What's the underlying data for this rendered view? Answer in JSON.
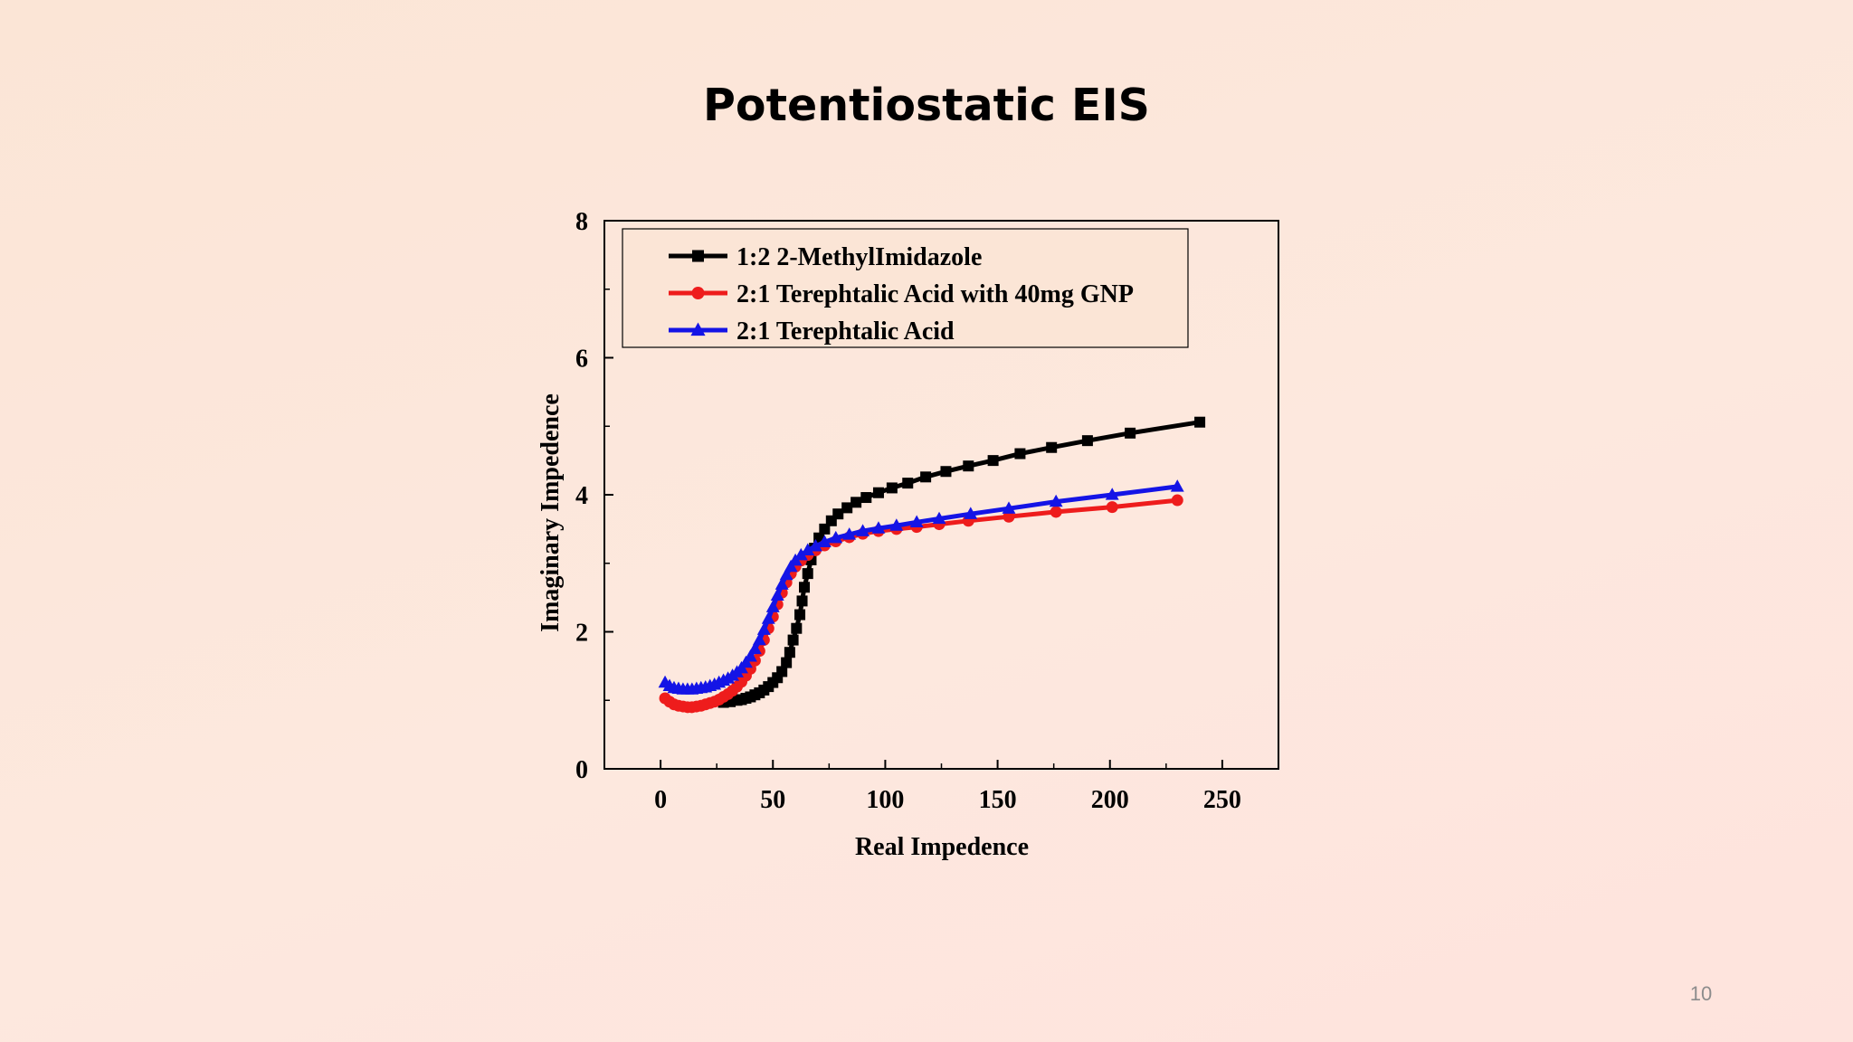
{
  "slide": {
    "title": "Potentiostatic EIS",
    "page_number": "10"
  },
  "colors": {
    "background": "#fbe5d6",
    "series_black": "#000000",
    "series_red": "#ee1c1c",
    "series_blue": "#1414e6"
  },
  "chart_data": {
    "type": "scatter",
    "xlabel": "Real Impedence",
    "ylabel": "Imaginary Impedence",
    "xlim": [
      -25,
      275
    ],
    "ylim": [
      0,
      8
    ],
    "xticks": [
      0,
      50,
      100,
      150,
      200,
      250
    ],
    "yticks": [
      0,
      2,
      4,
      6,
      8
    ],
    "legend_position": "top-left",
    "grid": false,
    "series": [
      {
        "name": "1:2 2-MethylImidazole",
        "color": "#000000",
        "marker": "square",
        "points": [
          [
            28,
            0.97
          ],
          [
            31,
            0.98
          ],
          [
            34,
            1.0
          ],
          [
            36,
            1.01
          ],
          [
            38,
            1.03
          ],
          [
            40,
            1.05
          ],
          [
            42,
            1.08
          ],
          [
            44,
            1.11
          ],
          [
            46,
            1.15
          ],
          [
            48,
            1.2
          ],
          [
            50,
            1.26
          ],
          [
            52,
            1.33
          ],
          [
            54,
            1.42
          ],
          [
            56,
            1.55
          ],
          [
            57.5,
            1.7
          ],
          [
            59,
            1.88
          ],
          [
            60.5,
            2.05
          ],
          [
            62,
            2.25
          ],
          [
            63,
            2.45
          ],
          [
            64,
            2.65
          ],
          [
            65.5,
            2.85
          ],
          [
            67,
            3.05
          ],
          [
            68.5,
            3.22
          ],
          [
            70.5,
            3.37
          ],
          [
            73,
            3.5
          ],
          [
            76,
            3.62
          ],
          [
            79,
            3.72
          ],
          [
            83,
            3.81
          ],
          [
            87,
            3.89
          ],
          [
            91.5,
            3.96
          ],
          [
            97,
            4.03
          ],
          [
            103,
            4.1
          ],
          [
            110,
            4.17
          ],
          [
            118,
            4.26
          ],
          [
            127,
            4.34
          ],
          [
            137,
            4.42
          ],
          [
            148,
            4.5
          ],
          [
            160,
            4.6
          ],
          [
            174,
            4.69
          ],
          [
            190,
            4.79
          ],
          [
            209,
            4.9
          ],
          [
            240,
            5.06
          ]
        ]
      },
      {
        "name": "2:1 Terephtalic Acid with 40mg GNP",
        "color": "#ee1c1c",
        "marker": "circle",
        "points": [
          [
            2,
            1.03
          ],
          [
            4,
            0.98
          ],
          [
            6,
            0.94
          ],
          [
            8,
            0.92
          ],
          [
            10,
            0.91
          ],
          [
            12,
            0.9
          ],
          [
            14,
            0.9
          ],
          [
            16,
            0.91
          ],
          [
            18,
            0.92
          ],
          [
            20,
            0.94
          ],
          [
            22,
            0.96
          ],
          [
            24,
            0.98
          ],
          [
            26,
            1.01
          ],
          [
            28,
            1.05
          ],
          [
            30,
            1.09
          ],
          [
            32,
            1.14
          ],
          [
            34,
            1.2
          ],
          [
            36,
            1.27
          ],
          [
            38,
            1.36
          ],
          [
            40,
            1.46
          ],
          [
            42,
            1.58
          ],
          [
            44,
            1.72
          ],
          [
            46,
            1.88
          ],
          [
            48,
            2.05
          ],
          [
            50,
            2.22
          ],
          [
            52,
            2.4
          ],
          [
            54,
            2.57
          ],
          [
            56,
            2.72
          ],
          [
            58,
            2.85
          ],
          [
            60,
            2.95
          ],
          [
            62.5,
            3.04
          ],
          [
            65.5,
            3.12
          ],
          [
            69,
            3.19
          ],
          [
            73,
            3.26
          ],
          [
            78,
            3.32
          ],
          [
            84,
            3.38
          ],
          [
            90,
            3.43
          ],
          [
            97,
            3.47
          ],
          [
            105,
            3.5
          ],
          [
            114,
            3.53
          ],
          [
            124,
            3.57
          ],
          [
            137,
            3.62
          ],
          [
            155,
            3.68
          ],
          [
            176,
            3.75
          ],
          [
            201,
            3.82
          ],
          [
            230,
            3.92
          ]
        ]
      },
      {
        "name": "2:1 Terephtalic Acid",
        "color": "#1414e6",
        "marker": "triangle",
        "points": [
          [
            2,
            1.26
          ],
          [
            4,
            1.21
          ],
          [
            6,
            1.18
          ],
          [
            8,
            1.17
          ],
          [
            10,
            1.16
          ],
          [
            12,
            1.16
          ],
          [
            14,
            1.16
          ],
          [
            16,
            1.17
          ],
          [
            18,
            1.18
          ],
          [
            20,
            1.19
          ],
          [
            22,
            1.21
          ],
          [
            24,
            1.23
          ],
          [
            26,
            1.26
          ],
          [
            28,
            1.29
          ],
          [
            30,
            1.32
          ],
          [
            32,
            1.36
          ],
          [
            34,
            1.41
          ],
          [
            36,
            1.47
          ],
          [
            38,
            1.55
          ],
          [
            40,
            1.64
          ],
          [
            42,
            1.75
          ],
          [
            44,
            1.88
          ],
          [
            46,
            2.03
          ],
          [
            48,
            2.19
          ],
          [
            50,
            2.36
          ],
          [
            52,
            2.53
          ],
          [
            54,
            2.69
          ],
          [
            56,
            2.83
          ],
          [
            58,
            2.95
          ],
          [
            60,
            3.04
          ],
          [
            62.5,
            3.12
          ],
          [
            65.5,
            3.19
          ],
          [
            69,
            3.25
          ],
          [
            73,
            3.31
          ],
          [
            78,
            3.37
          ],
          [
            84,
            3.42
          ],
          [
            90,
            3.47
          ],
          [
            97,
            3.51
          ],
          [
            105,
            3.55
          ],
          [
            114,
            3.6
          ],
          [
            124,
            3.65
          ],
          [
            138,
            3.72
          ],
          [
            155,
            3.8
          ],
          [
            176,
            3.9
          ],
          [
            201,
            4.0
          ],
          [
            230,
            4.12
          ]
        ]
      }
    ]
  }
}
